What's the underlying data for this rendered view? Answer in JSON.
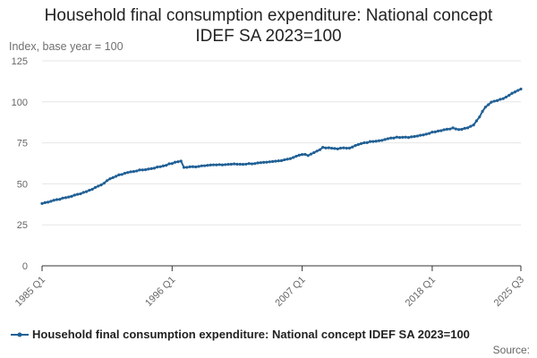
{
  "chart_data": {
    "type": "line",
    "title_lines": [
      "Household final consumption expenditure: National concept",
      "IDEF SA 2023=100"
    ],
    "ylabel": "Index, base year = 100",
    "xlabel": "",
    "ylim": [
      0,
      125
    ],
    "y_ticks": [
      0,
      25,
      50,
      75,
      100,
      125
    ],
    "grid": true,
    "x_range": [
      1985.0,
      2025.5
    ],
    "x_ticks": [
      {
        "label": "1985 Q1",
        "x": 1985.0
      },
      {
        "label": "1996 Q1",
        "x": 1996.0
      },
      {
        "label": "2007 Q1",
        "x": 2007.0
      },
      {
        "label": "2018 Q1",
        "x": 2018.0
      },
      {
        "label": "2025 Q3",
        "x": 2025.5
      }
    ],
    "legend_position": "bottom",
    "series": [
      {
        "name": "Household final consumption expenditure: National concept IDEF SA 2023=100",
        "color": "#206095",
        "anchors": [
          [
            1985.0,
            38.0
          ],
          [
            1986.0,
            40.0
          ],
          [
            1987.0,
            41.5
          ],
          [
            1988.0,
            43.5
          ],
          [
            1989.0,
            46.0
          ],
          [
            1990.0,
            49.5
          ],
          [
            1991.0,
            54.0
          ],
          [
            1992.0,
            56.5
          ],
          [
            1993.0,
            58.0
          ],
          [
            1994.0,
            59.0
          ],
          [
            1995.0,
            60.5
          ],
          [
            1996.0,
            62.5
          ],
          [
            1996.75,
            64.0
          ],
          [
            1997.0,
            60.0
          ],
          [
            1998.0,
            60.5
          ],
          [
            1999.0,
            61.5
          ],
          [
            2000.0,
            61.5
          ],
          [
            2001.0,
            62.0
          ],
          [
            2002.0,
            62.0
          ],
          [
            2003.0,
            62.5
          ],
          [
            2004.0,
            63.0
          ],
          [
            2005.0,
            64.0
          ],
          [
            2006.0,
            65.5
          ],
          [
            2007.0,
            68.0
          ],
          [
            2007.5,
            67.5
          ],
          [
            2008.0,
            69.0
          ],
          [
            2008.75,
            72.0
          ],
          [
            2010.0,
            71.5
          ],
          [
            2011.0,
            72.0
          ],
          [
            2012.0,
            74.5
          ],
          [
            2013.0,
            76.0
          ],
          [
            2014.0,
            77.0
          ],
          [
            2015.0,
            78.5
          ],
          [
            2016.0,
            78.5
          ],
          [
            2017.0,
            79.5
          ],
          [
            2018.0,
            81.5
          ],
          [
            2019.0,
            83.0
          ],
          [
            2019.75,
            84.0
          ],
          [
            2020.25,
            83.0
          ],
          [
            2021.0,
            84.0
          ],
          [
            2021.5,
            86.0
          ],
          [
            2022.0,
            91.0
          ],
          [
            2022.5,
            97.0
          ],
          [
            2023.0,
            100.0
          ],
          [
            2024.0,
            102.0
          ],
          [
            2025.0,
            106.0
          ],
          [
            2025.5,
            108.0
          ]
        ]
      }
    ]
  },
  "footer": {
    "source_label": "Source:"
  }
}
